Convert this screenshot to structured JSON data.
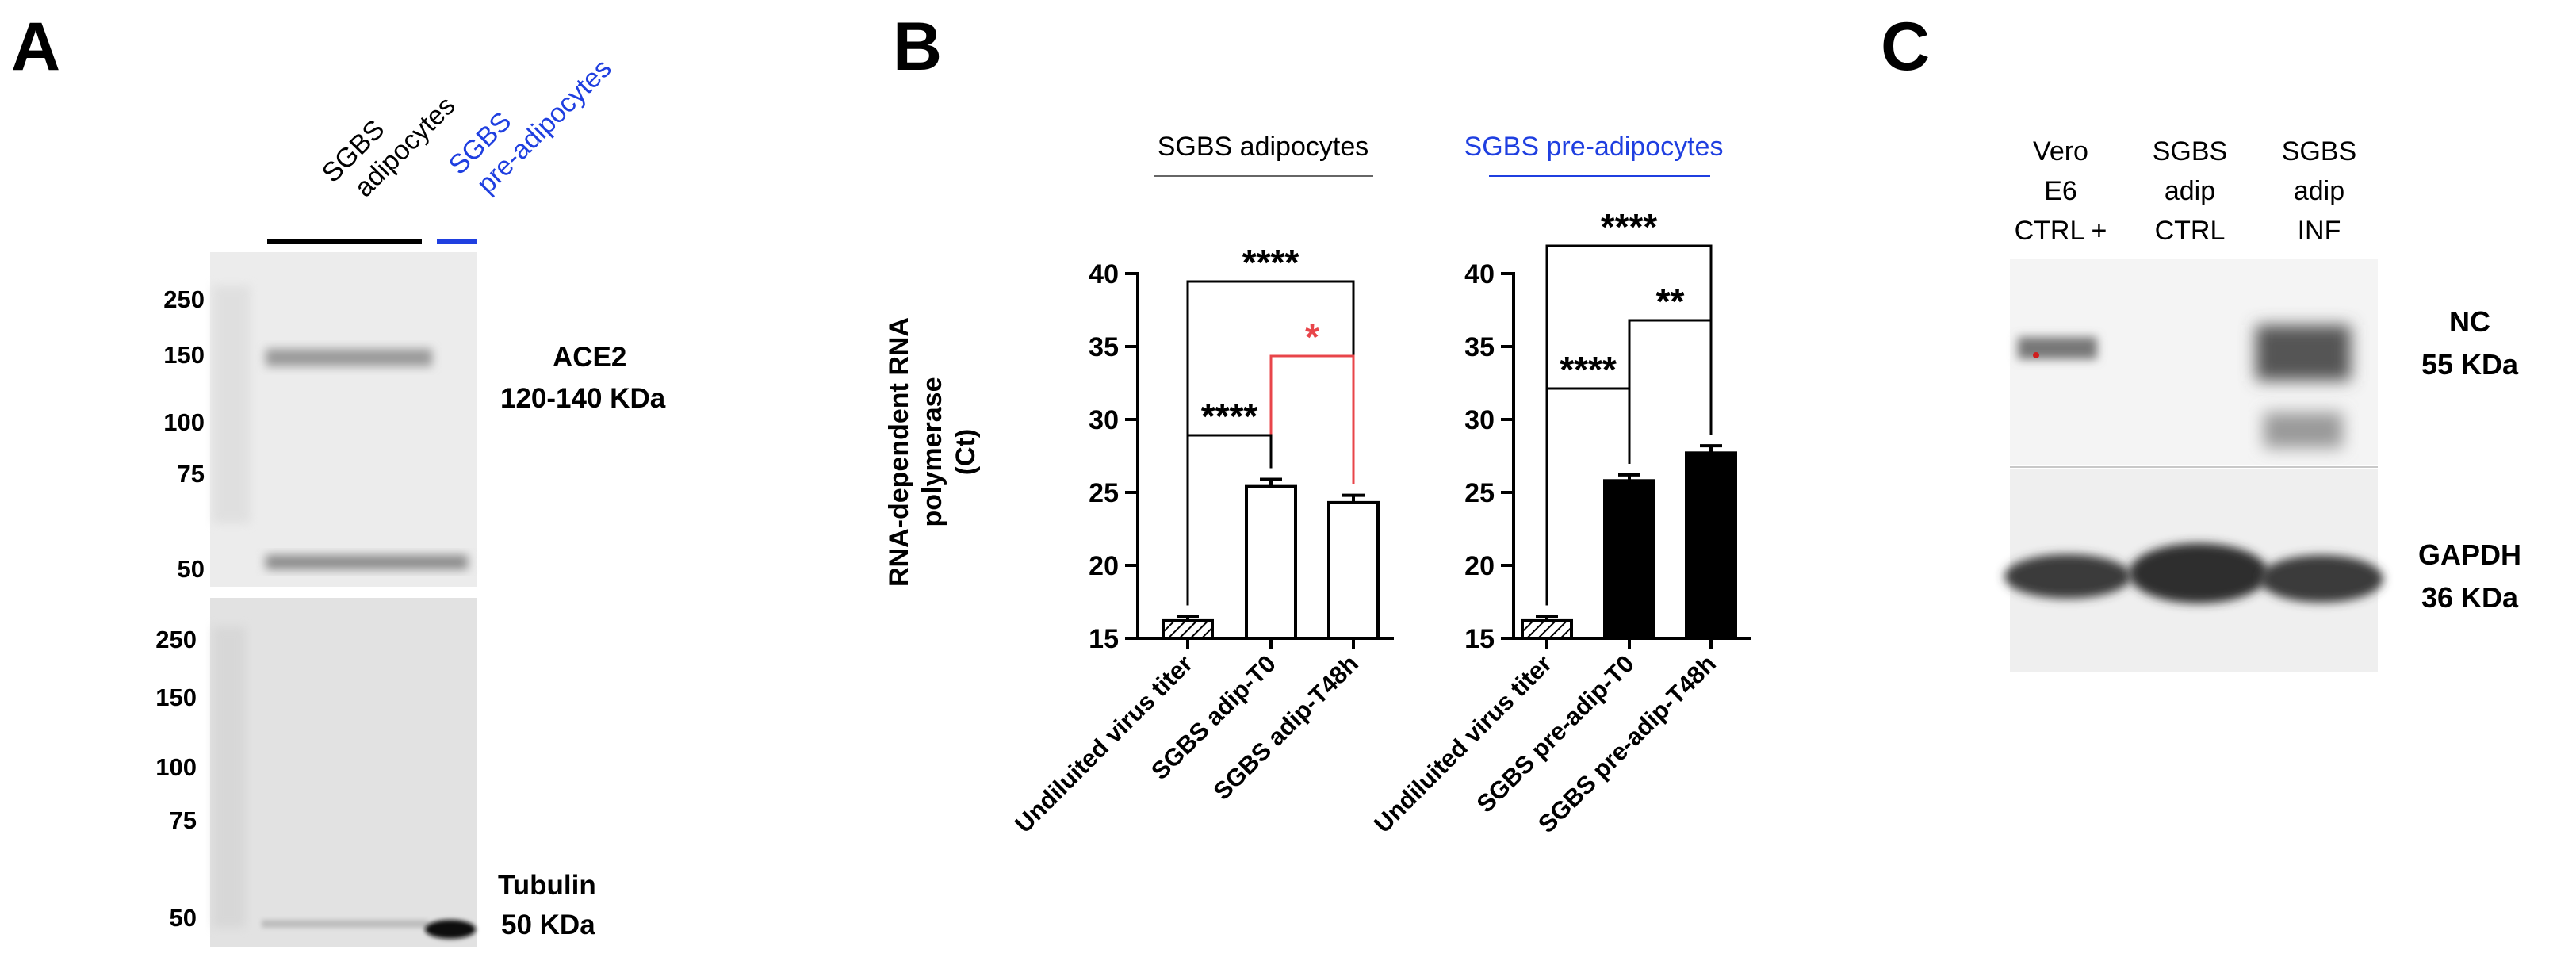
{
  "panel_a": {
    "letter": "A",
    "lane_labels": {
      "adipocytes_line1": "SGBS",
      "adipocytes_line2": "adipocytes",
      "pre_line1": "SGBS",
      "pre_line2": "pre-adipocytes"
    },
    "top_blot": {
      "markers": [
        "250",
        "150",
        "100",
        "75",
        "50"
      ],
      "protein": "ACE2",
      "size": "120-140 KDa"
    },
    "bottom_blot": {
      "markers": [
        "250",
        "150",
        "100",
        "75",
        "50"
      ],
      "protein": "Tubulin",
      "size": "50 KDa"
    }
  },
  "panel_b": {
    "letter": "B",
    "ylabel_line1": "RNA-dependent RNA",
    "ylabel_line2": "polymerase",
    "ylabel_line3": "(Ct)",
    "colors": {
      "adipocytes": "#000000",
      "pre_adipocytes": "#1f3fe0",
      "highlight": "#e8454a"
    }
  },
  "chart_data": [
    {
      "type": "bar",
      "title": "SGBS adipocytes",
      "categories": [
        "Undiluited virus titer",
        "SGBS adip-T0",
        "SGBS adip-T48h"
      ],
      "values": [
        16.2,
        25.4,
        24.3
      ],
      "errors": [
        0.3,
        0.5,
        0.5
      ],
      "fills": [
        "hatched",
        "white",
        "white"
      ],
      "ylim": [
        15,
        40
      ],
      "yticks": [
        "15",
        "20",
        "25",
        "30",
        "35",
        "40"
      ],
      "significance": [
        {
          "from": 0,
          "to": 2,
          "label": "****",
          "color": "#000000"
        },
        {
          "from": 1,
          "to": 2,
          "label": "*",
          "color": "#e8454a"
        },
        {
          "from": 0,
          "to": 1,
          "label": "****",
          "color": "#000000"
        }
      ]
    },
    {
      "type": "bar",
      "title": "SGBS pre-adipocytes",
      "categories": [
        "Undiluited virus titer",
        "SGBS pre-adip-T0",
        "SGBS pre-adip-T48h"
      ],
      "values": [
        16.2,
        25.8,
        27.7
      ],
      "errors": [
        0.3,
        0.4,
        0.5
      ],
      "fills": [
        "hatched",
        "black",
        "black"
      ],
      "ylim": [
        15,
        40
      ],
      "yticks": [
        "15",
        "20",
        "25",
        "30",
        "35",
        "40"
      ],
      "significance": [
        {
          "from": 0,
          "to": 2,
          "label": "****",
          "color": "#000000"
        },
        {
          "from": 1,
          "to": 2,
          "label": "**",
          "color": "#000000"
        },
        {
          "from": 0,
          "to": 1,
          "label": "****",
          "color": "#000000"
        }
      ]
    }
  ],
  "panel_c": {
    "letter": "C",
    "lanes": [
      {
        "line1": "Vero",
        "line2": "E6",
        "line3": "CTRL +"
      },
      {
        "line1": "SGBS",
        "line2": "adip",
        "line3": "CTRL"
      },
      {
        "line1": "SGBS",
        "line2": "adip",
        "line3": "INF"
      }
    ],
    "top_blot": {
      "protein": "NC",
      "size": "55 KDa"
    },
    "bottom_blot": {
      "protein": "GAPDH",
      "size": "36 KDa"
    }
  }
}
